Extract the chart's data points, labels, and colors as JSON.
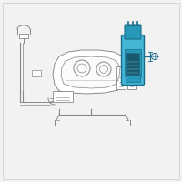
{
  "bg_color": "#f2f2f2",
  "highlight_color": "#45b5d5",
  "highlight_dark": "#1a6e8a",
  "highlight_mid": "#2898b8",
  "highlight_light": "#7dd4ea",
  "line_color": "#888888",
  "line_thin": "#999999",
  "fig_bg": "#f2f2f2",
  "border_color": "#cccccc",
  "white": "#ffffff",
  "dark_panel": "#1a5a70"
}
